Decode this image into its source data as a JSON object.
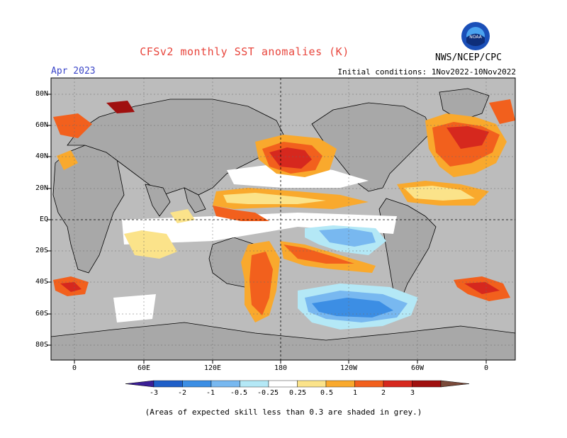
{
  "header": {
    "title": "CFSv2 monthly SST anomalies (K)",
    "valid_month": "Apr 2023",
    "initial_conditions": "Initial conditions: 1Nov2022-10Nov2022",
    "agency": "NWS/NCEP/CPC",
    "logo_text": "NOAA"
  },
  "map": {
    "lat_labels": [
      "80N",
      "60N",
      "40N",
      "20N",
      "EQ",
      "20S",
      "40S",
      "60S",
      "80S"
    ],
    "lon_labels": [
      "0",
      "60E",
      "120E",
      "180",
      "120W",
      "60W",
      "0"
    ],
    "colors": {
      "land": "#a8a8a8",
      "low_skill": "#bcbcbc",
      "neutral": "#ffffff"
    }
  },
  "colorbar": {
    "labels": [
      "-3",
      "-2",
      "-1",
      "-0.5",
      "-0.25",
      "0.25",
      "0.5",
      "1",
      "2",
      "3"
    ],
    "colors": [
      "#3b1f97",
      "#1f5fc8",
      "#3c8ee4",
      "#78b8f0",
      "#b4e8f6",
      "#ffffff",
      "#fbe38a",
      "#f9a92d",
      "#f2601d",
      "#d6281e",
      "#a0100f",
      "#7a4a3a"
    ]
  },
  "footnote": "(Areas of expected skill less than 0.3 are shaded in grey.)"
}
